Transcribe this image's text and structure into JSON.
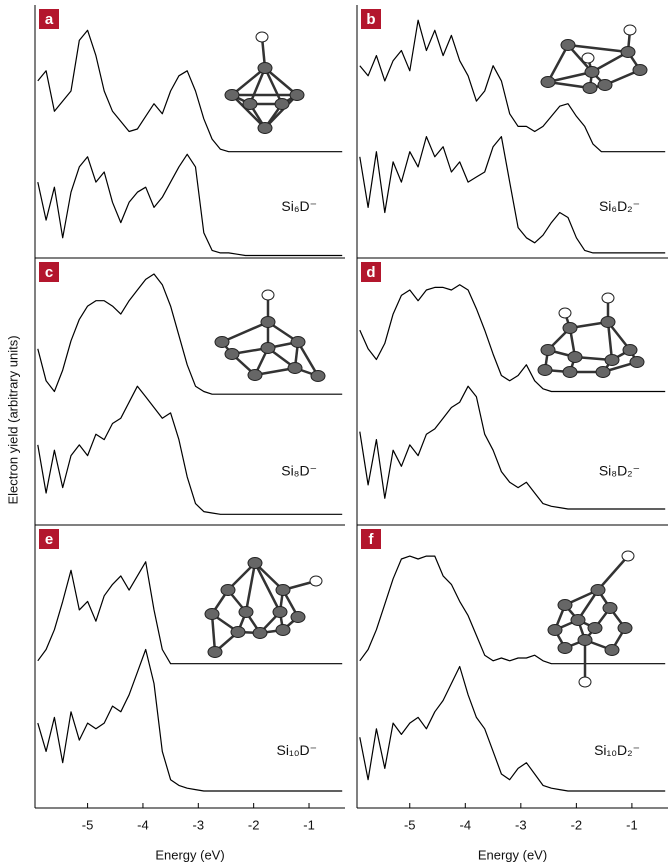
{
  "chart_data": [
    {
      "type": "line",
      "label": "a",
      "species": "Si₆D⁻",
      "xlim": [
        -5.95,
        -0.35
      ],
      "ylim": [
        0,
        100
      ],
      "x": [
        -5.9,
        -5.75,
        -5.6,
        -5.45,
        -5.3,
        -5.15,
        -5.0,
        -4.85,
        -4.7,
        -4.55,
        -4.4,
        -4.25,
        -4.1,
        -3.95,
        -3.8,
        -3.65,
        -3.5,
        -3.35,
        -3.2,
        -3.05,
        -2.9,
        -2.75,
        -2.6,
        -2.45,
        -2.3,
        -2.15,
        -2.0,
        -1.85,
        -1.7,
        -1.55,
        -1.4,
        -1.25,
        -1.1,
        -0.95,
        -0.8,
        -0.65,
        -0.5,
        -0.4
      ],
      "series": [
        {
          "color": "#000000",
          "values": [
            70,
            74,
            58,
            62,
            66,
            86,
            90,
            80,
            66,
            58,
            54,
            50,
            51,
            56,
            61,
            57,
            66,
            72,
            74,
            66,
            55,
            47,
            43,
            42,
            42,
            42,
            42,
            42,
            42,
            42,
            42,
            42,
            42,
            42,
            42,
            42,
            42,
            42
          ]
        },
        {
          "color": "#000000",
          "values": [
            30,
            15,
            28,
            8,
            26,
            36,
            40,
            30,
            34,
            22,
            14,
            22,
            26,
            28,
            20,
            24,
            30,
            36,
            41,
            36,
            10,
            3,
            2,
            2,
            1.5,
            1,
            1,
            1,
            1,
            1,
            1,
            1,
            1,
            1,
            1,
            1,
            1,
            1
          ]
        }
      ]
    },
    {
      "type": "line",
      "label": "b",
      "species": "Si₆D₂⁻",
      "xlim": [
        -5.95,
        -0.35
      ],
      "ylim": [
        0,
        100
      ],
      "x": [
        -5.9,
        -5.75,
        -5.6,
        -5.45,
        -5.3,
        -5.15,
        -5.0,
        -4.85,
        -4.7,
        -4.55,
        -4.4,
        -4.25,
        -4.1,
        -3.95,
        -3.8,
        -3.65,
        -3.5,
        -3.35,
        -3.2,
        -3.05,
        -2.9,
        -2.75,
        -2.6,
        -2.45,
        -2.3,
        -2.15,
        -2.0,
        -1.85,
        -1.7,
        -1.55,
        -1.4,
        -1.25,
        -1.1,
        -0.95,
        -0.8,
        -0.65,
        -0.5,
        -0.4
      ],
      "series": [
        {
          "color": "#000000",
          "values": [
            76,
            72,
            80,
            70,
            78,
            82,
            74,
            94,
            82,
            90,
            80,
            88,
            78,
            72,
            62,
            66,
            76,
            70,
            57,
            52,
            52,
            50,
            52,
            56,
            60,
            61,
            56,
            52,
            45,
            42,
            42,
            42,
            42,
            42,
            42,
            42,
            42,
            42
          ]
        },
        {
          "color": "#000000",
          "values": [
            40,
            20,
            42,
            18,
            38,
            30,
            42,
            36,
            48,
            40,
            44,
            34,
            38,
            30,
            32,
            34,
            44,
            48,
            30,
            12,
            8,
            6,
            9,
            14,
            18,
            16,
            8,
            3,
            2,
            2,
            2,
            2,
            2,
            2,
            2,
            2,
            2,
            2
          ]
        }
      ]
    },
    {
      "type": "line",
      "label": "c",
      "species": "Si₈D⁻",
      "ylabel": "Electron yield (arbitrary units)",
      "xlim": [
        -5.95,
        -0.35
      ],
      "ylim": [
        0,
        100
      ],
      "x": [
        -5.9,
        -5.75,
        -5.6,
        -5.45,
        -5.3,
        -5.15,
        -5.0,
        -4.85,
        -4.7,
        -4.55,
        -4.4,
        -4.25,
        -4.1,
        -3.95,
        -3.8,
        -3.65,
        -3.5,
        -3.35,
        -3.2,
        -3.05,
        -2.9,
        -2.75,
        -2.6,
        -2.45,
        -2.3,
        -2.15,
        -2.0,
        -1.85,
        -1.7,
        -1.55,
        -1.4,
        -1.25,
        -1.1,
        -0.95,
        -0.8,
        -0.65,
        -0.5,
        -0.4
      ],
      "series": [
        {
          "color": "#000000",
          "values": [
            66,
            54,
            50,
            58,
            69,
            77,
            82,
            84,
            84,
            82,
            79,
            84,
            88,
            92,
            94,
            90,
            82,
            71,
            60,
            52,
            50,
            49,
            49,
            49,
            49,
            49,
            49,
            49,
            49,
            49,
            49,
            49,
            49,
            49,
            49,
            49,
            49,
            49
          ]
        },
        {
          "color": "#000000",
          "values": [
            30,
            12,
            28,
            14,
            26,
            30,
            26,
            34,
            32,
            38,
            40,
            46,
            52,
            48,
            44,
            40,
            42,
            32,
            18,
            8,
            5,
            4.5,
            4,
            4,
            4,
            4,
            4,
            4,
            4,
            4,
            4,
            4,
            4,
            4,
            4,
            4,
            4,
            4
          ]
        }
      ]
    },
    {
      "type": "line",
      "label": "d",
      "species": "Si₈D₂⁻",
      "xlim": [
        -5.95,
        -0.35
      ],
      "ylim": [
        0,
        100
      ],
      "x": [
        -5.9,
        -5.75,
        -5.6,
        -5.45,
        -5.3,
        -5.15,
        -5.0,
        -4.85,
        -4.7,
        -4.55,
        -4.4,
        -4.25,
        -4.1,
        -3.95,
        -3.8,
        -3.65,
        -3.5,
        -3.35,
        -3.2,
        -3.05,
        -2.9,
        -2.75,
        -2.6,
        -2.45,
        -2.3,
        -2.15,
        -2.0,
        -1.85,
        -1.7,
        -1.55,
        -1.4,
        -1.25,
        -1.1,
        -0.95,
        -0.8,
        -0.65,
        -0.5,
        -0.4
      ],
      "series": [
        {
          "color": "#000000",
          "values": [
            73,
            66,
            62,
            68,
            79,
            86,
            88,
            84,
            88,
            89,
            89,
            88,
            90,
            88,
            81,
            73,
            64,
            56,
            54,
            56,
            60,
            54,
            51,
            50,
            50,
            50,
            50,
            50,
            50,
            50,
            50,
            50,
            50,
            50,
            50,
            50,
            50,
            50
          ]
        },
        {
          "color": "#000000",
          "values": [
            35,
            15,
            32,
            10,
            28,
            22,
            30,
            26,
            34,
            36,
            40,
            44,
            46,
            52,
            48,
            34,
            28,
            20,
            16,
            14,
            16,
            12,
            8,
            7,
            6.5,
            6,
            6,
            6,
            6,
            6,
            6,
            6,
            6,
            6,
            6,
            6,
            6,
            6
          ]
        }
      ]
    },
    {
      "type": "line",
      "label": "e",
      "species": "Si₁₀D⁻",
      "xlabel": "Energy (eV)",
      "xlim": [
        -5.95,
        -0.35
      ],
      "ylim": [
        0,
        100
      ],
      "xticks": [
        -5,
        -4,
        -3,
        -2,
        -1
      ],
      "x": [
        -5.9,
        -5.75,
        -5.6,
        -5.45,
        -5.3,
        -5.15,
        -5.0,
        -4.85,
        -4.7,
        -4.55,
        -4.4,
        -4.25,
        -4.1,
        -3.95,
        -3.8,
        -3.65,
        -3.5,
        -3.35,
        -3.2,
        -3.05,
        -2.9,
        -2.75,
        -2.6,
        -2.45,
        -2.3,
        -2.15,
        -2.0,
        -1.85,
        -1.7,
        -1.55,
        -1.4,
        -1.25,
        -1.1,
        -0.95,
        -0.8,
        -0.65,
        -0.5,
        -0.4
      ],
      "series": [
        {
          "color": "#000000",
          "values": [
            52,
            56,
            63,
            73,
            84,
            70,
            73,
            66,
            75,
            79,
            82,
            77,
            82,
            87,
            70,
            56,
            51,
            51,
            51,
            51,
            51,
            51,
            51,
            51,
            51,
            51,
            51,
            51,
            51,
            51,
            51,
            51,
            51,
            51,
            51,
            51,
            51,
            51
          ]
        },
        {
          "color": "#000000",
          "values": [
            30,
            20,
            32,
            16,
            34,
            24,
            30,
            28,
            30,
            36,
            34,
            40,
            48,
            56,
            44,
            20,
            10,
            8,
            7,
            6.5,
            6,
            6,
            6,
            6,
            6,
            6,
            6,
            6,
            6,
            6,
            6,
            6,
            6,
            6,
            6,
            6,
            6,
            6
          ]
        }
      ]
    },
    {
      "type": "line",
      "label": "f",
      "species": "Si₁₀D₂⁻",
      "xlabel": "Energy (eV)",
      "xlim": [
        -5.95,
        -0.35
      ],
      "ylim": [
        0,
        100
      ],
      "xticks": [
        -5,
        -4,
        -3,
        -2,
        -1
      ],
      "x": [
        -5.9,
        -5.75,
        -5.6,
        -5.45,
        -5.3,
        -5.15,
        -5.0,
        -4.85,
        -4.7,
        -4.55,
        -4.4,
        -4.25,
        -4.1,
        -3.95,
        -3.8,
        -3.65,
        -3.5,
        -3.35,
        -3.2,
        -3.05,
        -2.9,
        -2.75,
        -2.6,
        -2.45,
        -2.3,
        -2.15,
        -2.0,
        -1.85,
        -1.7,
        -1.55,
        -1.4,
        -1.25,
        -1.1,
        -0.95,
        -0.8,
        -0.65,
        -0.5,
        -0.4
      ],
      "series": [
        {
          "color": "#000000",
          "values": [
            52,
            56,
            63,
            72,
            81,
            88,
            89,
            88,
            89,
            89,
            82,
            79,
            73,
            68,
            61,
            54,
            52,
            53,
            52,
            53,
            53,
            54,
            52,
            51,
            51,
            51,
            51,
            51,
            51,
            51,
            51,
            51,
            51,
            51,
            51,
            51,
            51,
            51
          ]
        },
        {
          "color": "#000000",
          "values": [
            25,
            10,
            28,
            14,
            30,
            26,
            30,
            32,
            28,
            34,
            38,
            44,
            50,
            40,
            32,
            28,
            20,
            12,
            10,
            14,
            16,
            12,
            8,
            7,
            6.5,
            6,
            6,
            6,
            6,
            6,
            6,
            6,
            6,
            6,
            6,
            6,
            6,
            6
          ]
        }
      ]
    }
  ]
}
